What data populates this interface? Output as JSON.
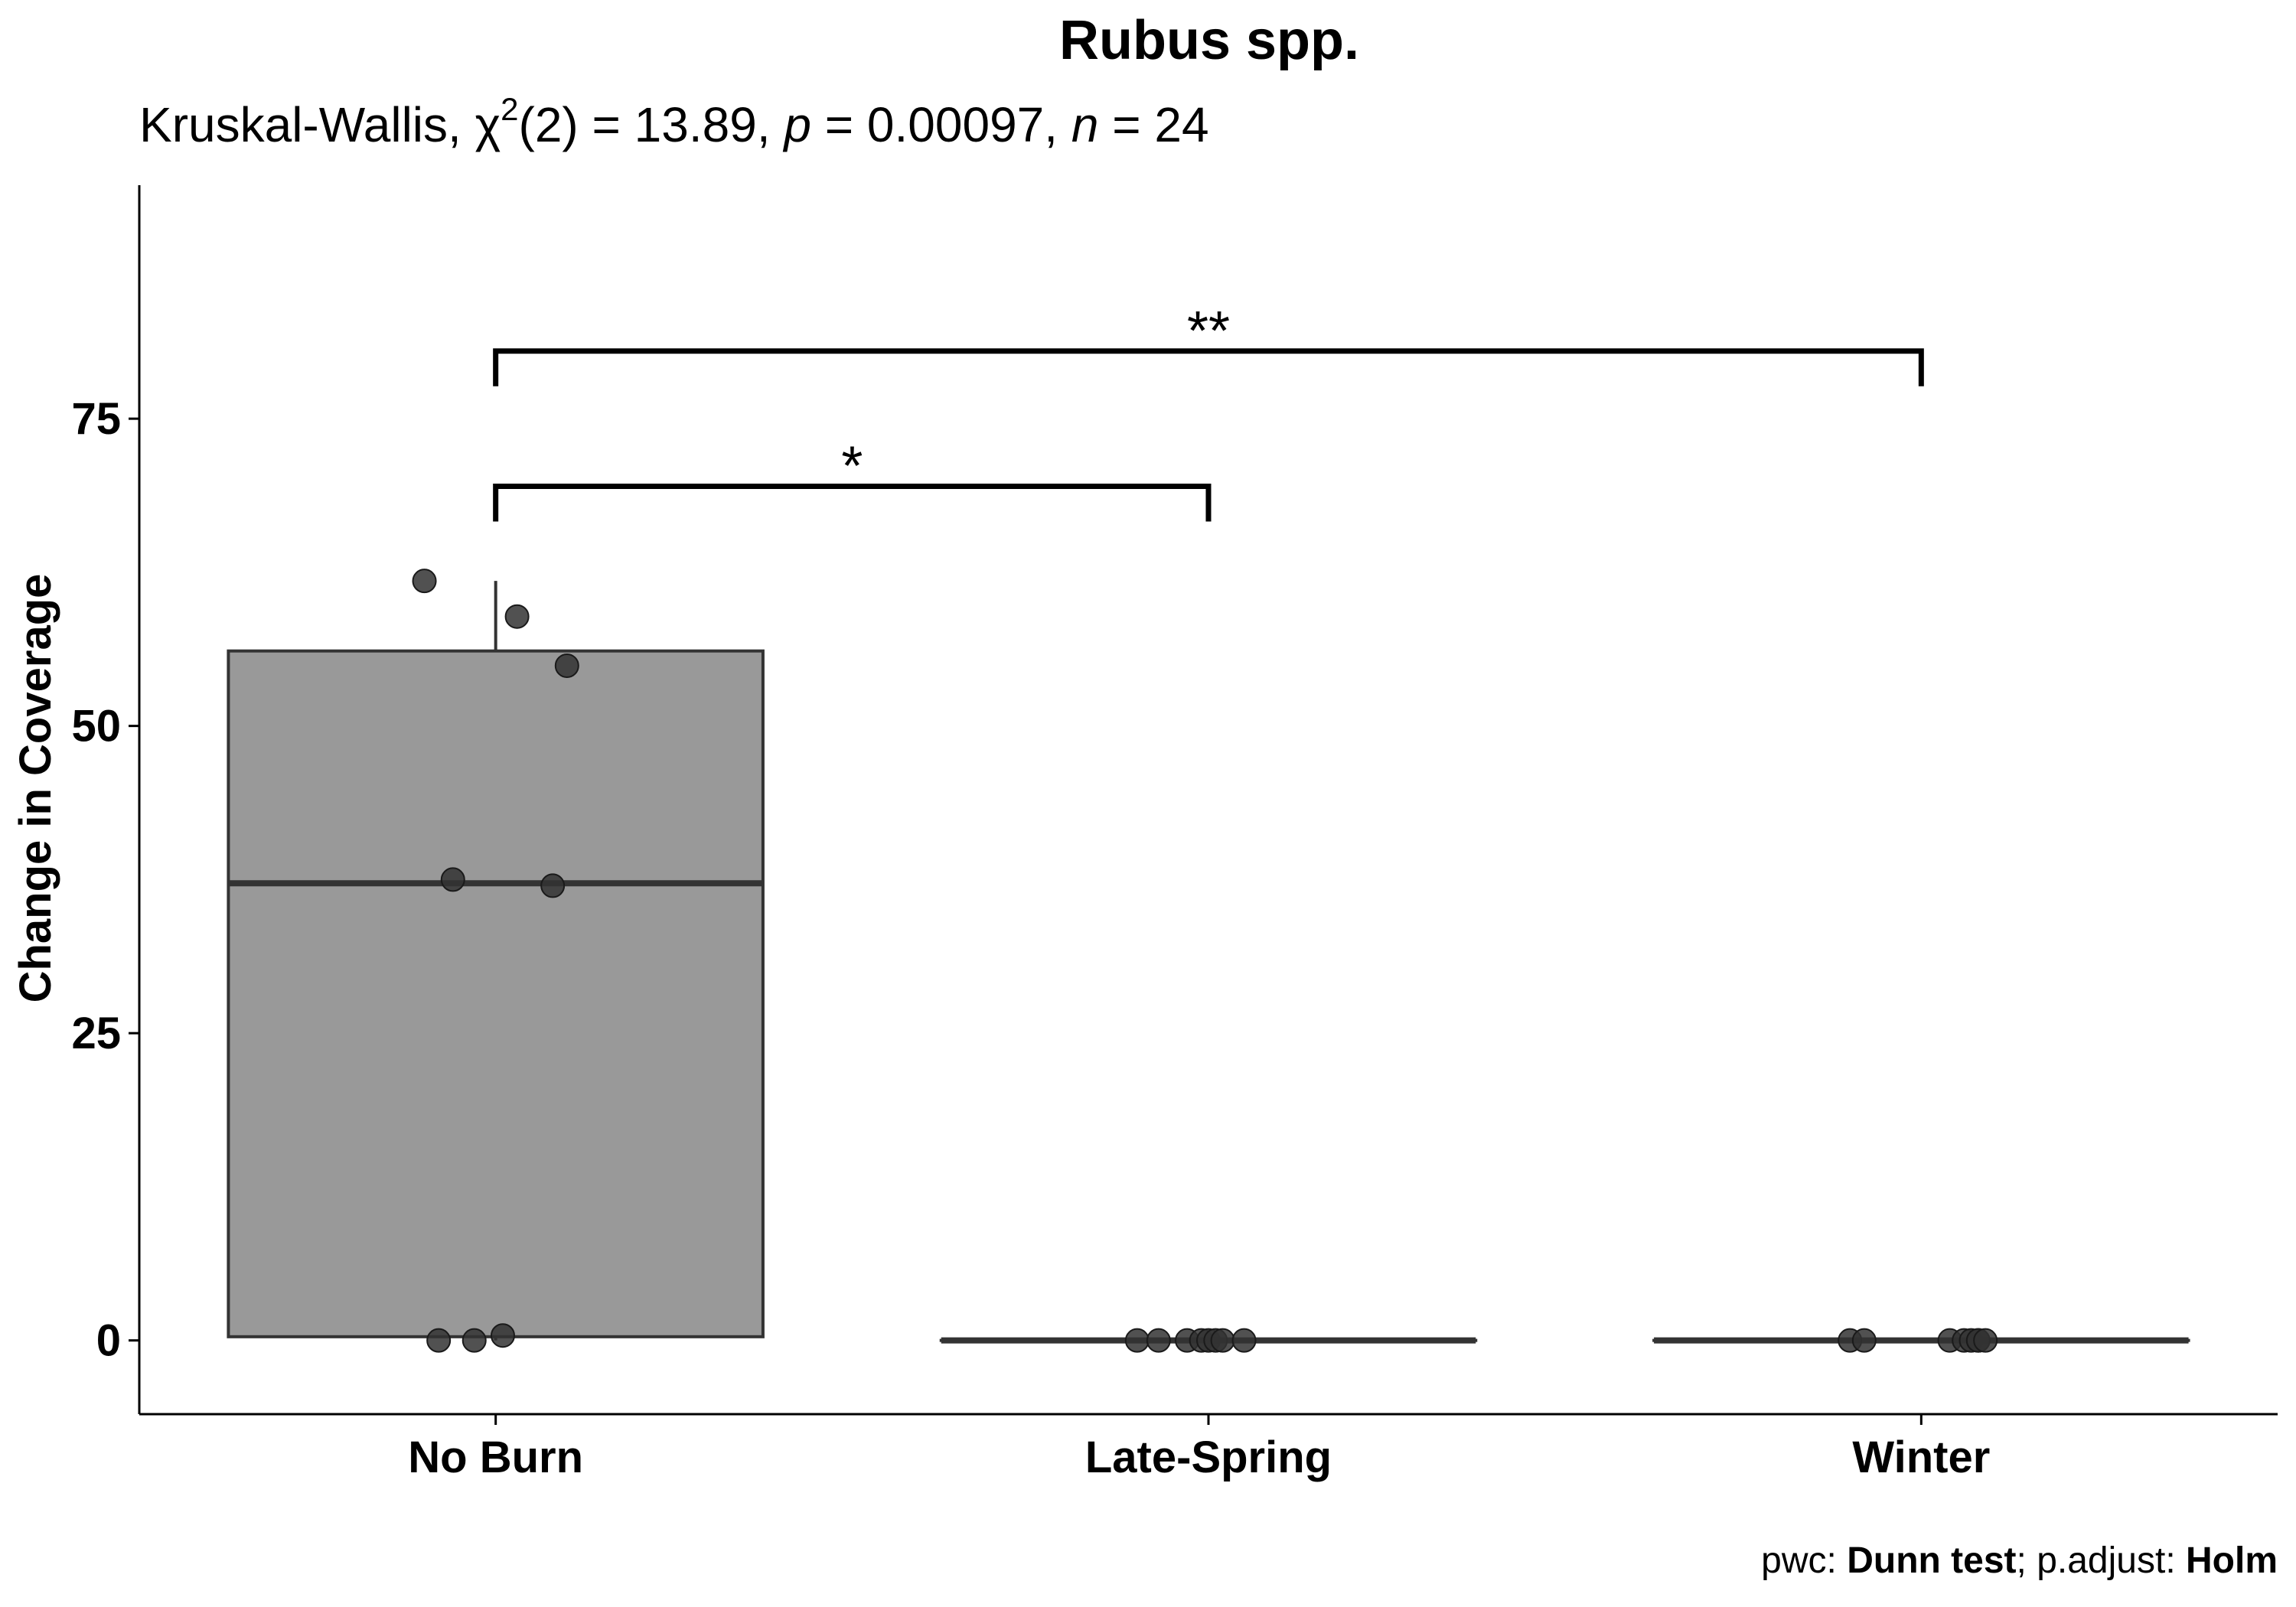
{
  "chart_data": {
    "type": "box",
    "title": "Rubus spp.",
    "subtitle": {
      "prefix": "Kruskal-Wallis, χ",
      "sup": "2",
      "df_part": "(2) = 13.89, ",
      "p_sym": "p",
      "p_part": " = 0.00097, ",
      "n_sym": "n",
      "n_part": " = 24"
    },
    "xlabel": "",
    "ylabel": "Change in Coverage",
    "ylim": [
      -6,
      94
    ],
    "yticks": [
      0,
      25,
      50,
      75
    ],
    "categories": [
      "No Burn",
      "Late-Spring",
      "Winter"
    ],
    "boxes": [
      {
        "category": "No Burn",
        "q1": 0.3,
        "median": 37.2,
        "q3": 56.1,
        "whisker_low": 0,
        "whisker_high": 61.8
      },
      {
        "category": "Late-Spring",
        "q1": 0,
        "median": 0,
        "q3": 0,
        "whisker_low": 0,
        "whisker_high": 0
      },
      {
        "category": "Winter",
        "q1": 0,
        "median": 0,
        "q3": 0,
        "whisker_low": 0,
        "whisker_high": 0
      }
    ],
    "points": [
      {
        "category": "No Burn",
        "values": [
          61.8,
          58.9,
          54.9,
          37.5,
          37.0,
          0,
          0,
          0.4
        ],
        "jitter": [
          -0.1,
          0.03,
          0.1,
          -0.06,
          0.08,
          -0.08,
          -0.03,
          0.01
        ]
      },
      {
        "category": "Late-Spring",
        "values": [
          0,
          0,
          0,
          0,
          0,
          0,
          0,
          0
        ],
        "jitter": [
          -0.1,
          -0.07,
          -0.03,
          -0.01,
          0.0,
          0.01,
          0.02,
          0.05
        ]
      },
      {
        "category": "Winter",
        "values": [
          0,
          0,
          0,
          0,
          0,
          0,
          0,
          0
        ],
        "jitter": [
          -0.1,
          -0.08,
          0.04,
          0.06,
          0.07,
          0.08,
          0.08,
          0.09
        ]
      }
    ],
    "comparisons": [
      {
        "from": "No Burn",
        "to": "Late-Spring",
        "y": 69.5,
        "label": "*"
      },
      {
        "from": "No Burn",
        "to": "Winter",
        "y": 80.5,
        "label": "**"
      }
    ],
    "colors": {
      "box_fill": "#999999",
      "box_stroke": "#333333",
      "point_fill": "#333333",
      "axis": "#000000"
    },
    "caption": {
      "pre": "pwc: ",
      "test": "Dunn test",
      "mid": "; p.adjust: ",
      "method": "Holm"
    }
  }
}
